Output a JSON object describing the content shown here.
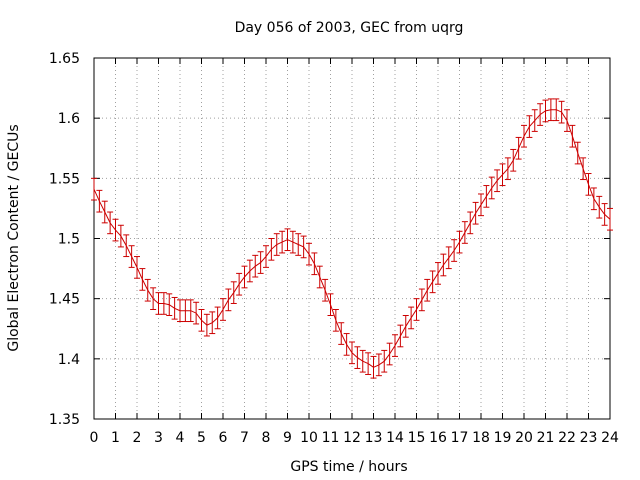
{
  "chart_data": {
    "type": "line",
    "title": "Day 056 of 2003, GEC from uqrg",
    "xlabel": "GPS time / hours",
    "ylabel": "Global Electron Content / GECUs",
    "xlim": [
      0,
      24
    ],
    "ylim": [
      1.35,
      1.65
    ],
    "grid": true,
    "x_ticks": [
      "0",
      "1",
      "2",
      "3",
      "4",
      "5",
      "6",
      "7",
      "8",
      "9",
      "10",
      "11",
      "12",
      "13",
      "14",
      "15",
      "16",
      "17",
      "18",
      "19",
      "20",
      "21",
      "22",
      "23",
      "24"
    ],
    "y_ticks": [
      "1.35",
      "1.4",
      "1.45",
      "1.5",
      "1.55",
      "1.6",
      "1.65"
    ],
    "error_bar": 0.009,
    "series": [
      {
        "color": "#cc0000",
        "x": [
          0,
          0.25,
          0.5,
          0.75,
          1,
          1.25,
          1.5,
          1.75,
          2,
          2.25,
          2.5,
          2.75,
          3,
          3.25,
          3.5,
          3.75,
          4,
          4.25,
          4.5,
          4.75,
          5,
          5.25,
          5.5,
          5.75,
          6,
          6.25,
          6.5,
          6.75,
          7,
          7.25,
          7.5,
          7.75,
          8,
          8.25,
          8.5,
          8.75,
          9,
          9.25,
          9.5,
          9.75,
          10,
          10.25,
          10.5,
          10.75,
          11,
          11.25,
          11.5,
          11.75,
          12,
          12.25,
          12.5,
          12.75,
          13,
          13.25,
          13.5,
          13.75,
          14,
          14.25,
          14.5,
          14.75,
          15,
          15.25,
          15.5,
          15.75,
          16,
          16.25,
          16.5,
          16.75,
          17,
          17.25,
          17.5,
          17.75,
          18,
          18.25,
          18.5,
          18.75,
          19,
          19.25,
          19.5,
          19.75,
          20,
          20.25,
          20.5,
          20.75,
          21,
          21.25,
          21.5,
          21.75,
          22,
          22.25,
          22.5,
          22.75,
          23,
          23.25,
          23.5,
          23.75,
          24
        ],
        "y": [
          1.541,
          1.531,
          1.522,
          1.513,
          1.507,
          1.502,
          1.494,
          1.485,
          1.476,
          1.466,
          1.457,
          1.45,
          1.446,
          1.446,
          1.445,
          1.442,
          1.44,
          1.44,
          1.44,
          1.438,
          1.432,
          1.428,
          1.43,
          1.434,
          1.441,
          1.449,
          1.455,
          1.462,
          1.468,
          1.473,
          1.477,
          1.48,
          1.485,
          1.491,
          1.495,
          1.497,
          1.499,
          1.497,
          1.495,
          1.493,
          1.487,
          1.479,
          1.468,
          1.457,
          1.445,
          1.432,
          1.421,
          1.412,
          1.405,
          1.401,
          1.398,
          1.396,
          1.393,
          1.395,
          1.398,
          1.404,
          1.411,
          1.419,
          1.427,
          1.434,
          1.441,
          1.449,
          1.457,
          1.464,
          1.471,
          1.478,
          1.484,
          1.49,
          1.497,
          1.505,
          1.513,
          1.521,
          1.528,
          1.535,
          1.542,
          1.548,
          1.553,
          1.558,
          1.565,
          1.575,
          1.585,
          1.593,
          1.598,
          1.603,
          1.606,
          1.607,
          1.607,
          1.605,
          1.598,
          1.585,
          1.571,
          1.558,
          1.545,
          1.533,
          1.526,
          1.52,
          1.516
        ]
      }
    ]
  }
}
